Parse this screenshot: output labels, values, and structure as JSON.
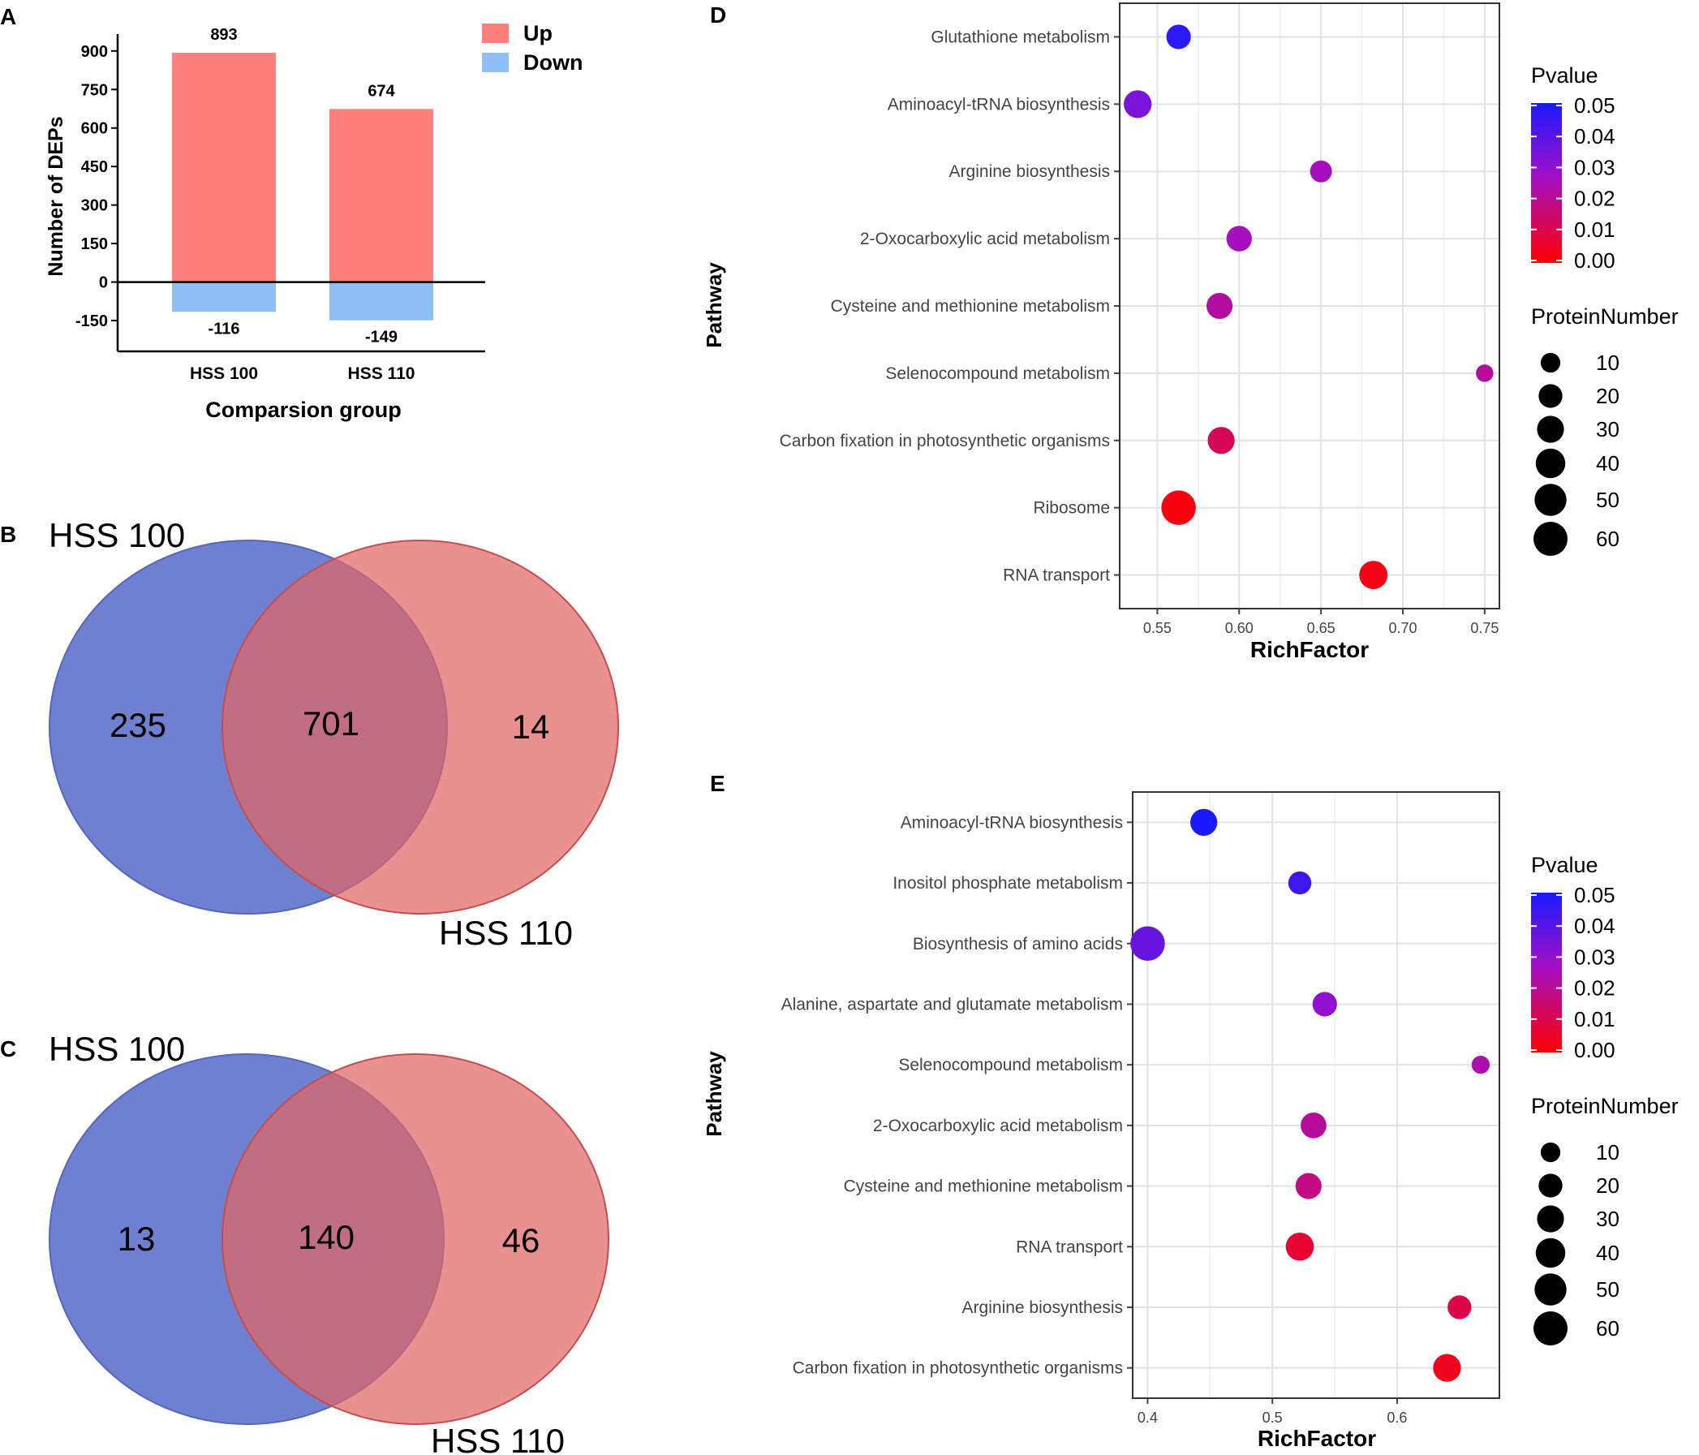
{
  "panel_labels": {
    "a": "A",
    "b": "B",
    "c": "C",
    "d": "D",
    "e": "E"
  },
  "colors": {
    "up": "#FF7F7F",
    "down": "#8FBFF4",
    "venn_left": "#7080D0",
    "venn_right": "#E06666",
    "venn_overlap": "#A8546F",
    "p_high": "#1A1AFF",
    "p_low": "#FF0000"
  },
  "chart_data": [
    {
      "id": "A",
      "type": "bar",
      "categories": [
        "HSS 100",
        "HSS 110"
      ],
      "series": [
        {
          "name": "Up",
          "values": [
            893,
            674
          ]
        },
        {
          "name": "Down",
          "values": [
            -116,
            -149
          ]
        }
      ],
      "value_labels": {
        "up": [
          "893",
          "674"
        ],
        "down": [
          "-116",
          "-149"
        ]
      },
      "yticks": [
        -150,
        0,
        150,
        300,
        450,
        600,
        750,
        900
      ],
      "ytick_labels": [
        "-150",
        "0",
        "150",
        "300",
        "450",
        "600",
        "750",
        "900"
      ],
      "ylim": [
        -270,
        950
      ],
      "xlabel": "Comparsion group",
      "ylabel": "Number of DEPs",
      "legend": {
        "position": "top-right",
        "entries": [
          "Up",
          "Down"
        ]
      }
    },
    {
      "id": "B",
      "type": "venn",
      "sets": [
        "HSS 100",
        "HSS 110"
      ],
      "counts": {
        "left_only": 235,
        "both": 701,
        "right_only": 14
      },
      "count_labels": {
        "left_only": "235",
        "both": "701",
        "right_only": "14"
      }
    },
    {
      "id": "C",
      "type": "venn",
      "sets": [
        "HSS 100",
        "HSS 110"
      ],
      "counts": {
        "left_only": 13,
        "both": 140,
        "right_only": 46
      },
      "count_labels": {
        "left_only": "13",
        "both": "140",
        "right_only": "46"
      }
    },
    {
      "id": "D",
      "type": "scatter",
      "xlabel": "RichFactor",
      "ylabel": "Pathway",
      "xlim": [
        0.527,
        0.759
      ],
      "xticks": [
        0.55,
        0.6,
        0.65,
        0.7,
        0.75
      ],
      "xtick_labels": [
        "0.55",
        "0.60",
        "0.65",
        "0.70",
        "0.75"
      ],
      "points": [
        {
          "pathway": "Glutathione metabolism",
          "rich_factor": 0.563,
          "pvalue": 0.047,
          "protein_number": 22
        },
        {
          "pathway": "Aminoacyl-tRNA biosynthesis",
          "rich_factor": 0.538,
          "pvalue": 0.034,
          "protein_number": 33
        },
        {
          "pathway": "Arginine biosynthesis",
          "rich_factor": 0.65,
          "pvalue": 0.026,
          "protein_number": 15
        },
        {
          "pathway": "2-Oxocarboxylic acid metabolism",
          "rich_factor": 0.6,
          "pvalue": 0.026,
          "protein_number": 25
        },
        {
          "pathway": "Cysteine and methionine metabolism",
          "rich_factor": 0.588,
          "pvalue": 0.022,
          "protein_number": 27
        },
        {
          "pathway": "Selenocompound metabolism",
          "rich_factor": 0.75,
          "pvalue": 0.021,
          "protein_number": 6
        },
        {
          "pathway": "Carbon fixation in photosynthetic organisms",
          "rich_factor": 0.589,
          "pvalue": 0.012,
          "protein_number": 30
        },
        {
          "pathway": "Ribosome",
          "rich_factor": 0.563,
          "pvalue": 0.002,
          "protein_number": 62
        },
        {
          "pathway": "RNA transport",
          "rich_factor": 0.682,
          "pvalue": 0.003,
          "protein_number": 35
        }
      ],
      "color_legend": {
        "title": "Pvalue",
        "ticks": [
          "0.05",
          "0.04",
          "0.03",
          "0.02",
          "0.01",
          "0.00"
        ]
      },
      "size_legend": {
        "title": "ProteinNumber",
        "values": [
          10,
          20,
          30,
          40,
          50,
          60
        ],
        "labels": [
          "10",
          "20",
          "30",
          "40",
          "50",
          "60"
        ]
      }
    },
    {
      "id": "E",
      "type": "scatter",
      "xlabel": "RichFactor",
      "ylabel": "Pathway",
      "xlim": [
        0.388,
        0.682
      ],
      "xticks": [
        0.4,
        0.5,
        0.6
      ],
      "xtick_labels": [
        "0.4",
        "0.5",
        "0.6"
      ],
      "points": [
        {
          "pathway": "Aminoacyl-tRNA biosynthesis",
          "rich_factor": 0.445,
          "pvalue": 0.05,
          "protein_number": 30
        },
        {
          "pathway": "Inositol phosphate metabolism",
          "rich_factor": 0.522,
          "pvalue": 0.044,
          "protein_number": 18
        },
        {
          "pathway": "Biosynthesis of amino acids",
          "rich_factor": 0.4,
          "pvalue": 0.037,
          "protein_number": 62
        },
        {
          "pathway": "Alanine, aspartate and glutamate metabolism",
          "rich_factor": 0.542,
          "pvalue": 0.03,
          "protein_number": 22
        },
        {
          "pathway": "Selenocompound metabolism",
          "rich_factor": 0.667,
          "pvalue": 0.024,
          "protein_number": 7
        },
        {
          "pathway": "2-Oxocarboxylic acid metabolism",
          "rich_factor": 0.533,
          "pvalue": 0.021,
          "protein_number": 26
        },
        {
          "pathway": "Cysteine and methionine metabolism",
          "rich_factor": 0.529,
          "pvalue": 0.018,
          "protein_number": 27
        },
        {
          "pathway": "RNA transport",
          "rich_factor": 0.522,
          "pvalue": 0.007,
          "protein_number": 34
        },
        {
          "pathway": "Arginine biosynthesis",
          "rich_factor": 0.65,
          "pvalue": 0.01,
          "protein_number": 20
        },
        {
          "pathway": "Carbon fixation in photosynthetic organisms",
          "rich_factor": 0.64,
          "pvalue": 0.004,
          "protein_number": 33
        }
      ],
      "color_legend": {
        "title": "Pvalue",
        "ticks": [
          "0.05",
          "0.04",
          "0.03",
          "0.02",
          "0.01",
          "0.00"
        ]
      },
      "size_legend": {
        "title": "ProteinNumber",
        "values": [
          10,
          20,
          30,
          40,
          50,
          60
        ],
        "labels": [
          "10",
          "20",
          "30",
          "40",
          "50",
          "60"
        ]
      }
    }
  ]
}
